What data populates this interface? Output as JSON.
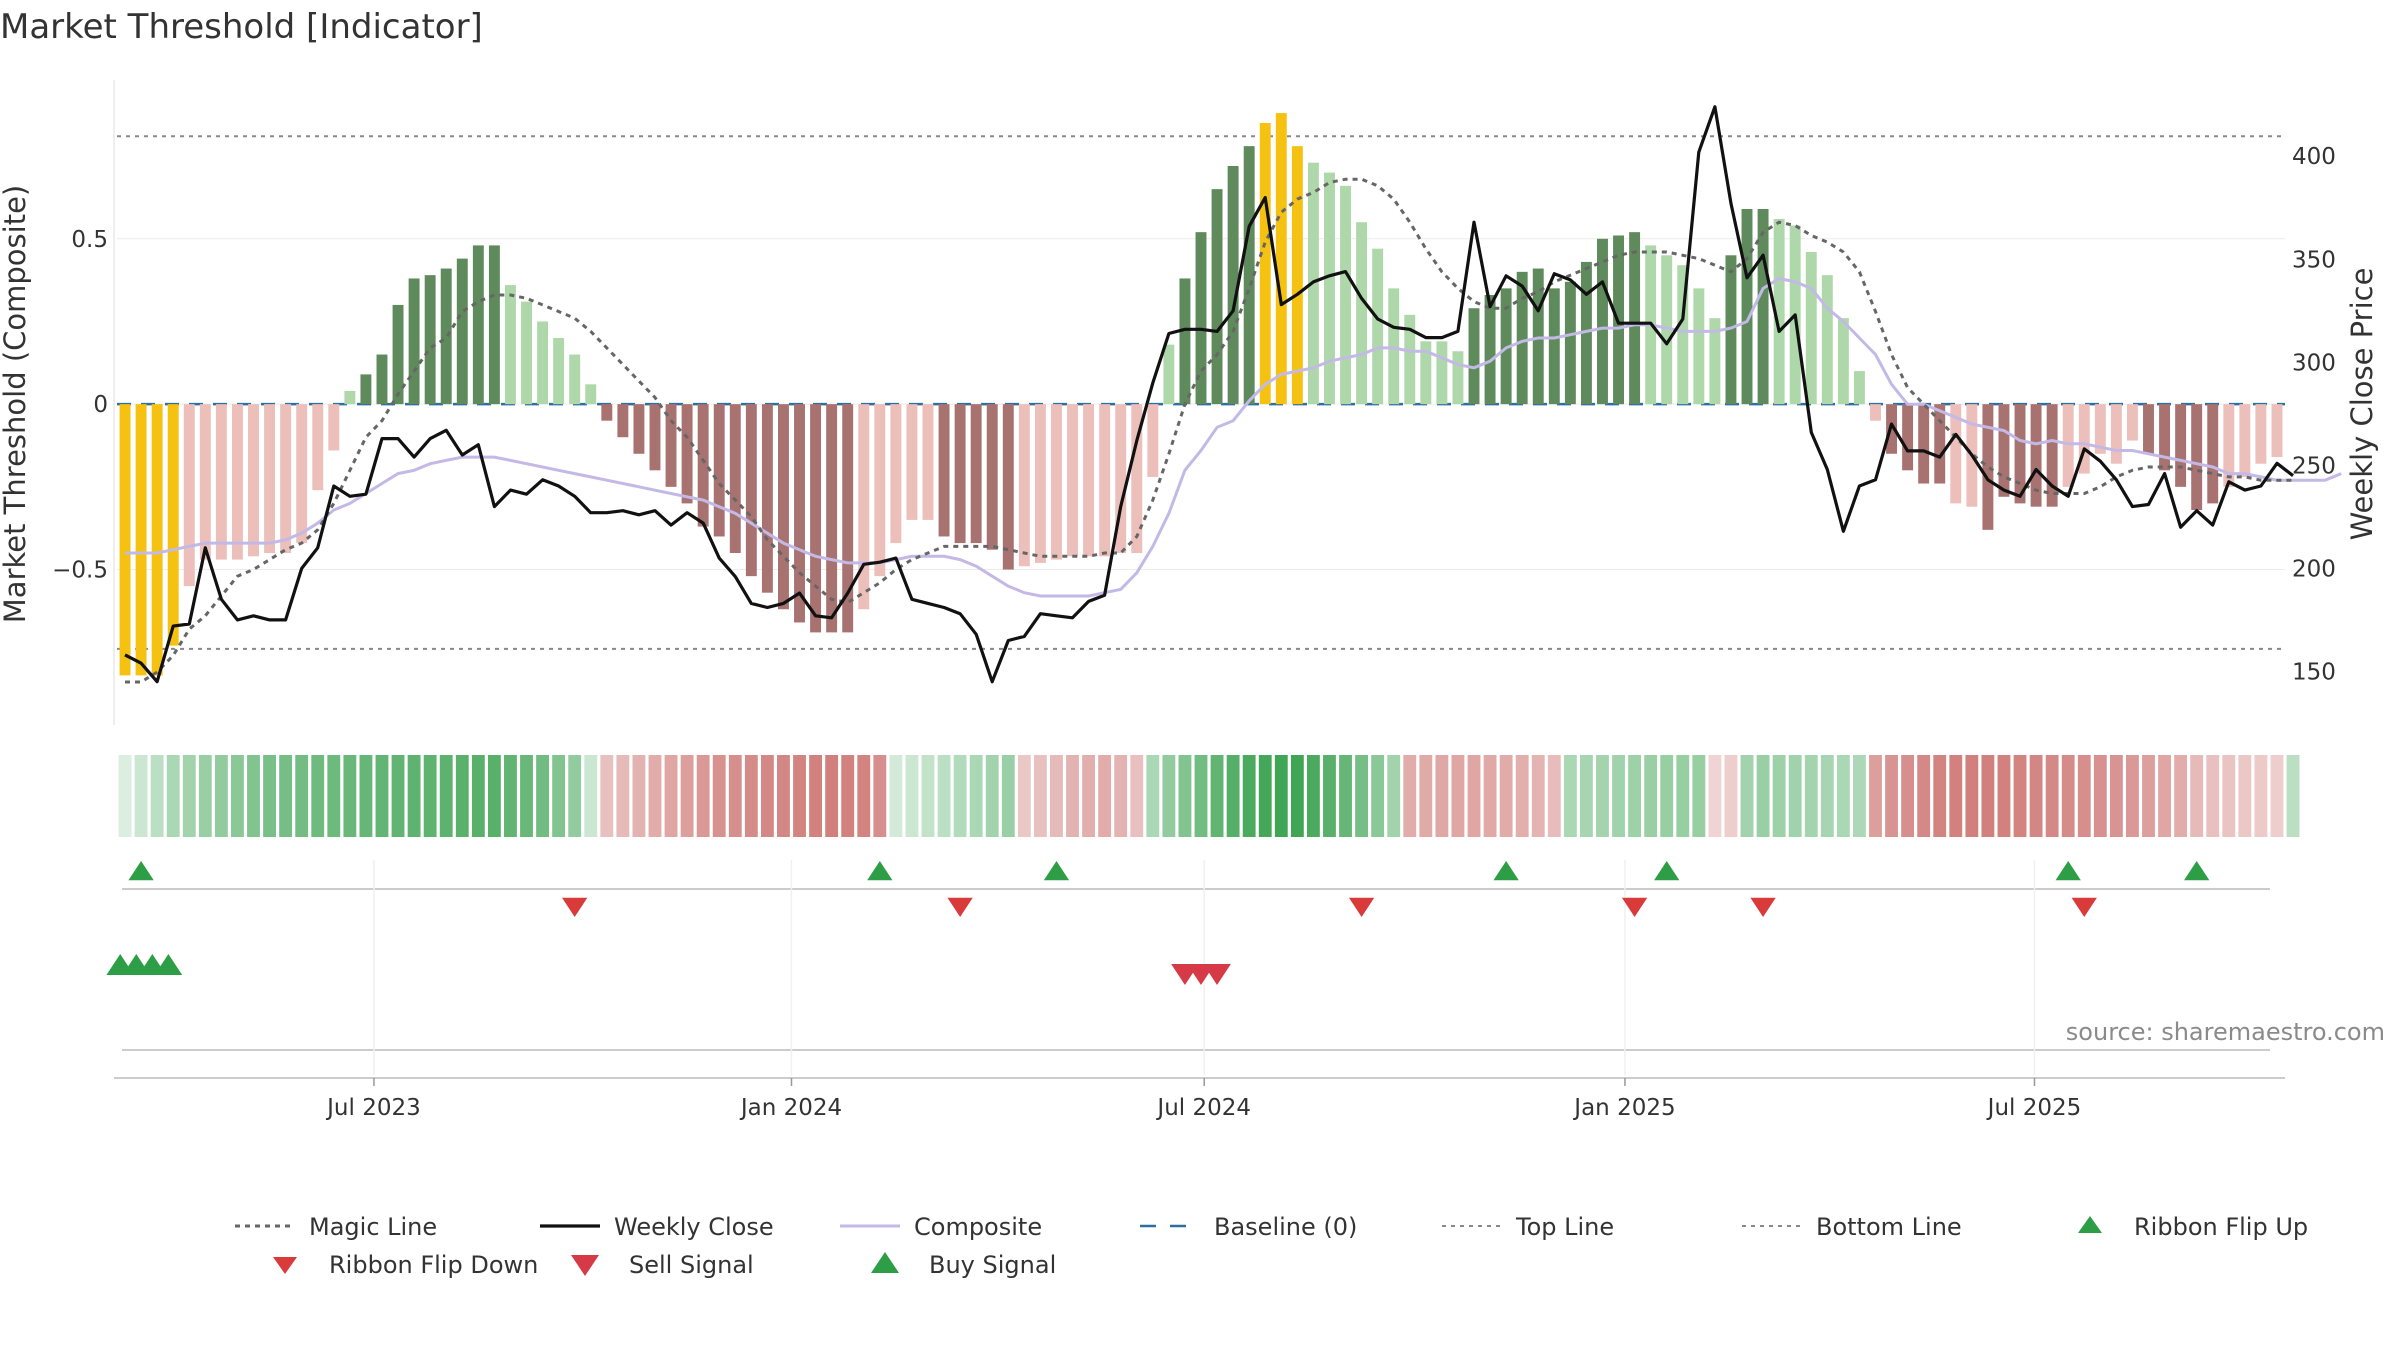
{
  "title": "Market Threshold [Indicator]",
  "source": "source: sharemaestro.com",
  "colors": {
    "gold": "#f5c211",
    "greenDark": "#5e8a5c",
    "greenLight": "#aed8a9",
    "redDark": "#a87270",
    "redLight": "#ecbfba",
    "composite": "#c3b9e6",
    "close": "#111111",
    "magic": "#666666",
    "baseline": "#2f6f9e",
    "buy": "#2e9e46",
    "sell": "#d63a46",
    "flipDown": "#d93a3a"
  },
  "chart_data": {
    "type": "bar",
    "ylabel_left": "Market Threshold (Composite)",
    "ylabel_right": "Weekly Close Price",
    "left_ticks": [
      {
        "v": 0.5,
        "label": "0.5"
      },
      {
        "v": 0,
        "label": "0"
      },
      {
        "v": -0.5,
        "label": "−0.5"
      }
    ],
    "right_ticks": [
      {
        "v": 400,
        "label": "400"
      },
      {
        "v": 350,
        "label": "350"
      },
      {
        "v": 300,
        "label": "300"
      },
      {
        "v": 250,
        "label": "250"
      },
      {
        "v": 200,
        "label": "200"
      },
      {
        "v": 150,
        "label": "150"
      }
    ],
    "x_ticks": [
      {
        "i": 15.5,
        "label": "Jul 2023"
      },
      {
        "i": 41.5,
        "label": "Jan 2024"
      },
      {
        "i": 67.2,
        "label": "Jul 2024"
      },
      {
        "i": 93.4,
        "label": "Jan 2025"
      },
      {
        "i": 118.9,
        "label": "Jul 2025"
      }
    ],
    "ylim_left": [
      -0.97,
      0.98
    ],
    "ylim_right": [
      124,
      437
    ],
    "top_line": 0.81,
    "bottom_line": -0.74,
    "baseline": 0,
    "composite_bars": [
      -0.82,
      -0.82,
      -0.82,
      -0.73,
      -0.55,
      -0.47,
      -0.47,
      -0.47,
      -0.46,
      -0.45,
      -0.45,
      -0.42,
      -0.26,
      -0.14,
      0.04,
      0.09,
      0.15,
      0.3,
      0.38,
      0.39,
      0.41,
      0.44,
      0.48,
      0.48,
      0.36,
      0.31,
      0.25,
      0.2,
      0.15,
      0.06,
      -0.05,
      -0.1,
      -0.15,
      -0.2,
      -0.25,
      -0.3,
      -0.37,
      -0.4,
      -0.45,
      -0.52,
      -0.57,
      -0.62,
      -0.66,
      -0.69,
      -0.69,
      -0.69,
      -0.62,
      -0.52,
      -0.42,
      -0.35,
      -0.35,
      -0.4,
      -0.42,
      -0.42,
      -0.44,
      -0.5,
      -0.49,
      -0.48,
      -0.47,
      -0.46,
      -0.46,
      -0.46,
      -0.45,
      -0.45,
      -0.22,
      0.18,
      0.38,
      0.52,
      0.65,
      0.72,
      0.78,
      0.85,
      0.88,
      0.78,
      0.73,
      0.7,
      0.66,
      0.55,
      0.47,
      0.35,
      0.27,
      0.19,
      0.19,
      0.16,
      0.29,
      0.33,
      0.35,
      0.4,
      0.41,
      0.35,
      0.37,
      0.43,
      0.5,
      0.51,
      0.52,
      0.48,
      0.45,
      0.42,
      0.35,
      0.26,
      0.45,
      0.59,
      0.59,
      0.56,
      0.54,
      0.46,
      0.39,
      0.26,
      0.1,
      -0.05,
      -0.15,
      -0.2,
      -0.24,
      -0.24,
      -0.3,
      -0.31,
      -0.38,
      -0.28,
      -0.3,
      -0.31,
      -0.31,
      -0.25,
      -0.21,
      -0.15,
      -0.18,
      -0.11,
      -0.15,
      -0.2,
      -0.25,
      -0.32,
      -0.3,
      -0.25,
      -0.22,
      -0.18,
      -0.16
    ],
    "bar_colors": [
      "gold",
      "gold",
      "gold",
      "gold",
      "redLight",
      "redLight",
      "redLight",
      "redLight",
      "redLight",
      "redLight",
      "redLight",
      "redLight",
      "redLight",
      "redLight",
      "greenLight",
      "greenDark",
      "greenDark",
      "greenDark",
      "greenDark",
      "greenDark",
      "greenDark",
      "greenDark",
      "greenDark",
      "greenDark",
      "greenLight",
      "greenLight",
      "greenLight",
      "greenLight",
      "greenLight",
      "greenLight",
      "redDark",
      "redDark",
      "redDark",
      "redDark",
      "redDark",
      "redDark",
      "redDark",
      "redDark",
      "redDark",
      "redDark",
      "redDark",
      "redDark",
      "redDark",
      "redDark",
      "redDark",
      "redDark",
      "redLight",
      "redLight",
      "redLight",
      "redLight",
      "redLight",
      "redDark",
      "redDark",
      "redDark",
      "redDark",
      "redDark",
      "redLight",
      "redLight",
      "redLight",
      "redLight",
      "redLight",
      "redLight",
      "redLight",
      "redLight",
      "redLight",
      "greenLight",
      "greenDark",
      "greenDark",
      "greenDark",
      "greenDark",
      "greenDark",
      "gold",
      "gold",
      "gold",
      "greenLight",
      "greenLight",
      "greenLight",
      "greenLight",
      "greenLight",
      "greenLight",
      "greenLight",
      "greenLight",
      "greenLight",
      "greenLight",
      "greenDark",
      "greenDark",
      "greenDark",
      "greenDark",
      "greenDark",
      "greenDark",
      "greenDark",
      "greenDark",
      "greenDark",
      "greenDark",
      "greenDark",
      "greenLight",
      "greenLight",
      "greenLight",
      "greenLight",
      "greenLight",
      "greenDark",
      "greenDark",
      "greenDark",
      "greenLight",
      "greenLight",
      "greenLight",
      "greenLight",
      "greenLight",
      "greenLight",
      "redLight",
      "redDark",
      "redDark",
      "redDark",
      "redDark",
      "redLight",
      "redLight",
      "redDark",
      "redDark",
      "redDark",
      "redDark",
      "redDark",
      "redLight",
      "redLight",
      "redLight",
      "redLight",
      "redLight",
      "redDark",
      "redDark",
      "redDark",
      "redDark",
      "redDark",
      "redLight",
      "redLight",
      "redLight",
      "redLight"
    ],
    "weekly_close": [
      158,
      154,
      145,
      172,
      173,
      210,
      185,
      175,
      177,
      175,
      175,
      200,
      210,
      240,
      235,
      236,
      263,
      263,
      254,
      263,
      267,
      255,
      260,
      230,
      238,
      236,
      243,
      240,
      235,
      227,
      227,
      228,
      226,
      228,
      221,
      227,
      222,
      205,
      196,
      183,
      181,
      183,
      188,
      177,
      176,
      188,
      202,
      203,
      205,
      185,
      183,
      181,
      178,
      168,
      145,
      165,
      167,
      178,
      177,
      176,
      184,
      187,
      230,
      262,
      290,
      314,
      316,
      316,
      315,
      325,
      366,
      380,
      328,
      333,
      339,
      342,
      344,
      331,
      321,
      317,
      316,
      312,
      312,
      315,
      368,
      327,
      342,
      337,
      325,
      343,
      340,
      333,
      339,
      319,
      319,
      319,
      309,
      321,
      402,
      424,
      377,
      341,
      352,
      315,
      323,
      266,
      248,
      218,
      240,
      243,
      270,
      257,
      257,
      254,
      265,
      255,
      243,
      238,
      235,
      248,
      240,
      235,
      258,
      252,
      243,
      230,
      231,
      246,
      220,
      228,
      221,
      242,
      238,
      240,
      251,
      245
    ],
    "composite_line": [
      -0.45,
      -0.45,
      -0.45,
      -0.44,
      -0.43,
      -0.42,
      -0.42,
      -0.42,
      -0.42,
      -0.42,
      -0.41,
      -0.39,
      -0.36,
      -0.32,
      -0.3,
      -0.27,
      -0.24,
      -0.21,
      -0.2,
      -0.18,
      -0.17,
      -0.16,
      -0.16,
      -0.16,
      -0.17,
      -0.18,
      -0.19,
      -0.2,
      -0.21,
      -0.22,
      -0.23,
      -0.24,
      -0.25,
      -0.26,
      -0.27,
      -0.28,
      -0.29,
      -0.31,
      -0.33,
      -0.36,
      -0.39,
      -0.42,
      -0.44,
      -0.46,
      -0.47,
      -0.48,
      -0.48,
      -0.48,
      -0.47,
      -0.46,
      -0.46,
      -0.46,
      -0.47,
      -0.49,
      -0.52,
      -0.55,
      -0.57,
      -0.58,
      -0.58,
      -0.58,
      -0.58,
      -0.57,
      -0.56,
      -0.51,
      -0.43,
      -0.33,
      -0.2,
      -0.14,
      -0.07,
      -0.05,
      0.01,
      0.06,
      0.09,
      0.1,
      0.11,
      0.13,
      0.14,
      0.15,
      0.17,
      0.17,
      0.16,
      0.16,
      0.14,
      0.12,
      0.11,
      0.13,
      0.17,
      0.19,
      0.2,
      0.2,
      0.21,
      0.22,
      0.23,
      0.23,
      0.24,
      0.24,
      0.23,
      0.22,
      0.22,
      0.22,
      0.23,
      0.25,
      0.35,
      0.38,
      0.37,
      0.35,
      0.29,
      0.25,
      0.2,
      0.15,
      0.06,
      0.0,
      0.0,
      -0.02,
      -0.04,
      -0.06,
      -0.07,
      -0.08,
      -0.11,
      -0.12,
      -0.11,
      -0.12,
      -0.12,
      -0.13,
      -0.14,
      -0.14,
      -0.15,
      -0.16,
      -0.17,
      -0.18,
      -0.19,
      -0.21,
      -0.21,
      -0.22,
      -0.23,
      -0.23,
      -0.23,
      -0.23,
      -0.21
    ],
    "magic_line": [
      -0.84,
      -0.84,
      -0.81,
      -0.76,
      -0.68,
      -0.64,
      -0.58,
      -0.52,
      -0.5,
      -0.47,
      -0.44,
      -0.42,
      -0.38,
      -0.3,
      -0.2,
      -0.1,
      -0.05,
      0.03,
      0.1,
      0.17,
      0.2,
      0.28,
      0.31,
      0.33,
      0.33,
      0.32,
      0.3,
      0.28,
      0.26,
      0.22,
      0.17,
      0.12,
      0.07,
      0.02,
      -0.05,
      -0.1,
      -0.17,
      -0.24,
      -0.29,
      -0.34,
      -0.41,
      -0.46,
      -0.51,
      -0.55,
      -0.59,
      -0.6,
      -0.57,
      -0.54,
      -0.5,
      -0.47,
      -0.45,
      -0.43,
      -0.43,
      -0.43,
      -0.43,
      -0.44,
      -0.45,
      -0.46,
      -0.46,
      -0.46,
      -0.46,
      -0.45,
      -0.45,
      -0.4,
      -0.29,
      -0.15,
      0.0,
      0.1,
      0.15,
      0.22,
      0.35,
      0.49,
      0.58,
      0.62,
      0.64,
      0.67,
      0.68,
      0.68,
      0.66,
      0.62,
      0.55,
      0.47,
      0.4,
      0.35,
      0.31,
      0.29,
      0.29,
      0.32,
      0.34,
      0.37,
      0.39,
      0.41,
      0.43,
      0.45,
      0.46,
      0.46,
      0.46,
      0.45,
      0.44,
      0.42,
      0.4,
      0.44,
      0.52,
      0.55,
      0.54,
      0.51,
      0.49,
      0.46,
      0.4,
      0.28,
      0.15,
      0.05,
      0.0,
      -0.05,
      -0.1,
      -0.15,
      -0.19,
      -0.22,
      -0.24,
      -0.26,
      -0.27,
      -0.27,
      -0.27,
      -0.25,
      -0.22,
      -0.2,
      -0.19,
      -0.19,
      -0.19,
      -0.2,
      -0.21,
      -0.22,
      -0.22,
      -0.23,
      -0.23,
      -0.23
    ],
    "ribbon": [
      0.0,
      0.1,
      0.2,
      0.3,
      0.35,
      0.4,
      0.45,
      0.5,
      0.55,
      0.6,
      0.62,
      0.64,
      0.66,
      0.68,
      0.7,
      0.72,
      0.74,
      0.75,
      0.76,
      0.77,
      0.78,
      0.79,
      0.8,
      0.8,
      0.75,
      0.7,
      0.65,
      0.55,
      0.45,
      0.1,
      -0.25,
      -0.3,
      -0.35,
      -0.4,
      -0.45,
      -0.5,
      -0.55,
      -0.6,
      -0.62,
      -0.64,
      -0.66,
      -0.68,
      -0.7,
      -0.72,
      -0.73,
      -0.72,
      -0.7,
      -0.62,
      0.05,
      0.1,
      0.15,
      0.2,
      0.25,
      0.3,
      0.35,
      0.4,
      -0.2,
      -0.25,
      -0.3,
      -0.35,
      -0.38,
      -0.4,
      -0.35,
      -0.25,
      0.3,
      0.45,
      0.55,
      0.65,
      0.75,
      0.82,
      0.88,
      0.92,
      0.95,
      0.95,
      0.88,
      0.8,
      0.72,
      0.62,
      0.5,
      0.35,
      -0.4,
      -0.42,
      -0.44,
      -0.45,
      -0.45,
      -0.43,
      -0.41,
      -0.38,
      -0.34,
      -0.28,
      0.3,
      0.32,
      0.34,
      0.36,
      0.38,
      0.4,
      0.42,
      0.42,
      0.42,
      -0.1,
      -0.15,
      0.35,
      0.4,
      0.38,
      0.36,
      0.34,
      0.32,
      0.3,
      0.28,
      -0.5,
      -0.58,
      -0.62,
      -0.66,
      -0.7,
      -0.72,
      -0.73,
      -0.73,
      -0.72,
      -0.7,
      -0.68,
      -0.66,
      -0.64,
      -0.62,
      -0.6,
      -0.58,
      -0.55,
      -0.5,
      -0.45,
      -0.4,
      -0.3,
      -0.25,
      -0.22,
      -0.2,
      -0.18,
      -0.15,
      0.2
    ],
    "ribbon_flip_up": [
      1,
      47,
      58,
      86,
      96,
      121,
      129
    ],
    "ribbon_flip_down": [
      28,
      52,
      77,
      94,
      102,
      122
    ],
    "buy_signal": [
      0,
      1,
      2,
      3
    ],
    "sell_signal": [
      66,
      67,
      68
    ],
    "legend": [
      {
        "key": "magic",
        "label": "Magic Line"
      },
      {
        "key": "close",
        "label": "Weekly Close"
      },
      {
        "key": "composite",
        "label": "Composite"
      },
      {
        "key": "baseline",
        "label": "Baseline (0)"
      },
      {
        "key": "top",
        "label": "Top Line"
      },
      {
        "key": "bottom",
        "label": "Bottom Line"
      },
      {
        "key": "flipup",
        "label": "Ribbon Flip Up"
      },
      {
        "key": "flipdown",
        "label": "Ribbon Flip Down"
      },
      {
        "key": "sell",
        "label": "Sell Signal"
      },
      {
        "key": "buy",
        "label": "Buy Signal"
      }
    ]
  }
}
